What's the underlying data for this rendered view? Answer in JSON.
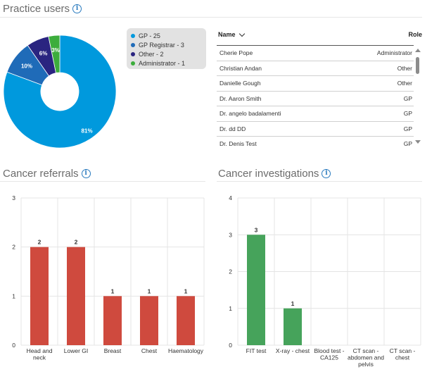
{
  "practice_users": {
    "title": "Practice users",
    "legend": [
      {
        "label": "GP - 25",
        "color": "#0099dd"
      },
      {
        "label": "GP Registrar - 3",
        "color": "#1f6bb8"
      },
      {
        "label": "Other - 2",
        "color": "#2a2480"
      },
      {
        "label": "Administrator - 1",
        "color": "#3cad3c"
      }
    ],
    "table": {
      "col_name": "Name",
      "col_role": "Role",
      "rows": [
        {
          "name": "Cherie Pope",
          "role": "Administrator"
        },
        {
          "name": "Christian Andan",
          "role": "Other"
        },
        {
          "name": "Danielle Gough",
          "role": "Other"
        },
        {
          "name": "Dr. Aaron Smith",
          "role": "GP"
        },
        {
          "name": "Dr. angelo badalamenti",
          "role": "GP"
        },
        {
          "name": "Dr. dd DD",
          "role": "GP"
        },
        {
          "name": "Dr. Denis Test",
          "role": "GP"
        }
      ]
    }
  },
  "cancer_referrals": {
    "title": "Cancer referrals"
  },
  "cancer_investigations": {
    "title": "Cancer investigations"
  },
  "chart_data": [
    {
      "id": "pie",
      "type": "pie",
      "title": "Practice users",
      "categories": [
        "GP",
        "GP Registrar",
        "Other",
        "Administrator"
      ],
      "values": [
        25,
        3,
        2,
        1
      ],
      "percent_labels": [
        "81%",
        "10%",
        "6%",
        "3%"
      ],
      "colors": [
        "#0099dd",
        "#1f6bb8",
        "#2a2480",
        "#3cad3c"
      ]
    },
    {
      "id": "referrals",
      "type": "bar",
      "title": "Cancer referrals",
      "categories": [
        [
          "Head and",
          "neck"
        ],
        [
          "Lower GI"
        ],
        [
          "Breast"
        ],
        [
          "Chest"
        ],
        [
          "Haematology"
        ]
      ],
      "values": [
        2,
        2,
        1,
        1,
        1
      ],
      "ylim": [
        0,
        3
      ],
      "yticks": [
        0,
        1,
        2,
        3
      ],
      "color": "#cf4a3e"
    },
    {
      "id": "investigations",
      "type": "bar",
      "title": "Cancer investigations",
      "categories": [
        [
          "FIT test"
        ],
        [
          "X-ray - chest"
        ],
        [
          "Blood test -",
          "CA125"
        ],
        [
          "CT scan -",
          "abdomen and",
          "pelvis"
        ],
        [
          "CT scan -",
          "chest"
        ]
      ],
      "values": [
        3,
        1,
        0,
        0,
        0
      ],
      "ylim": [
        0,
        4
      ],
      "yticks": [
        0,
        1,
        2,
        3,
        4
      ],
      "color": "#46a35b"
    }
  ]
}
